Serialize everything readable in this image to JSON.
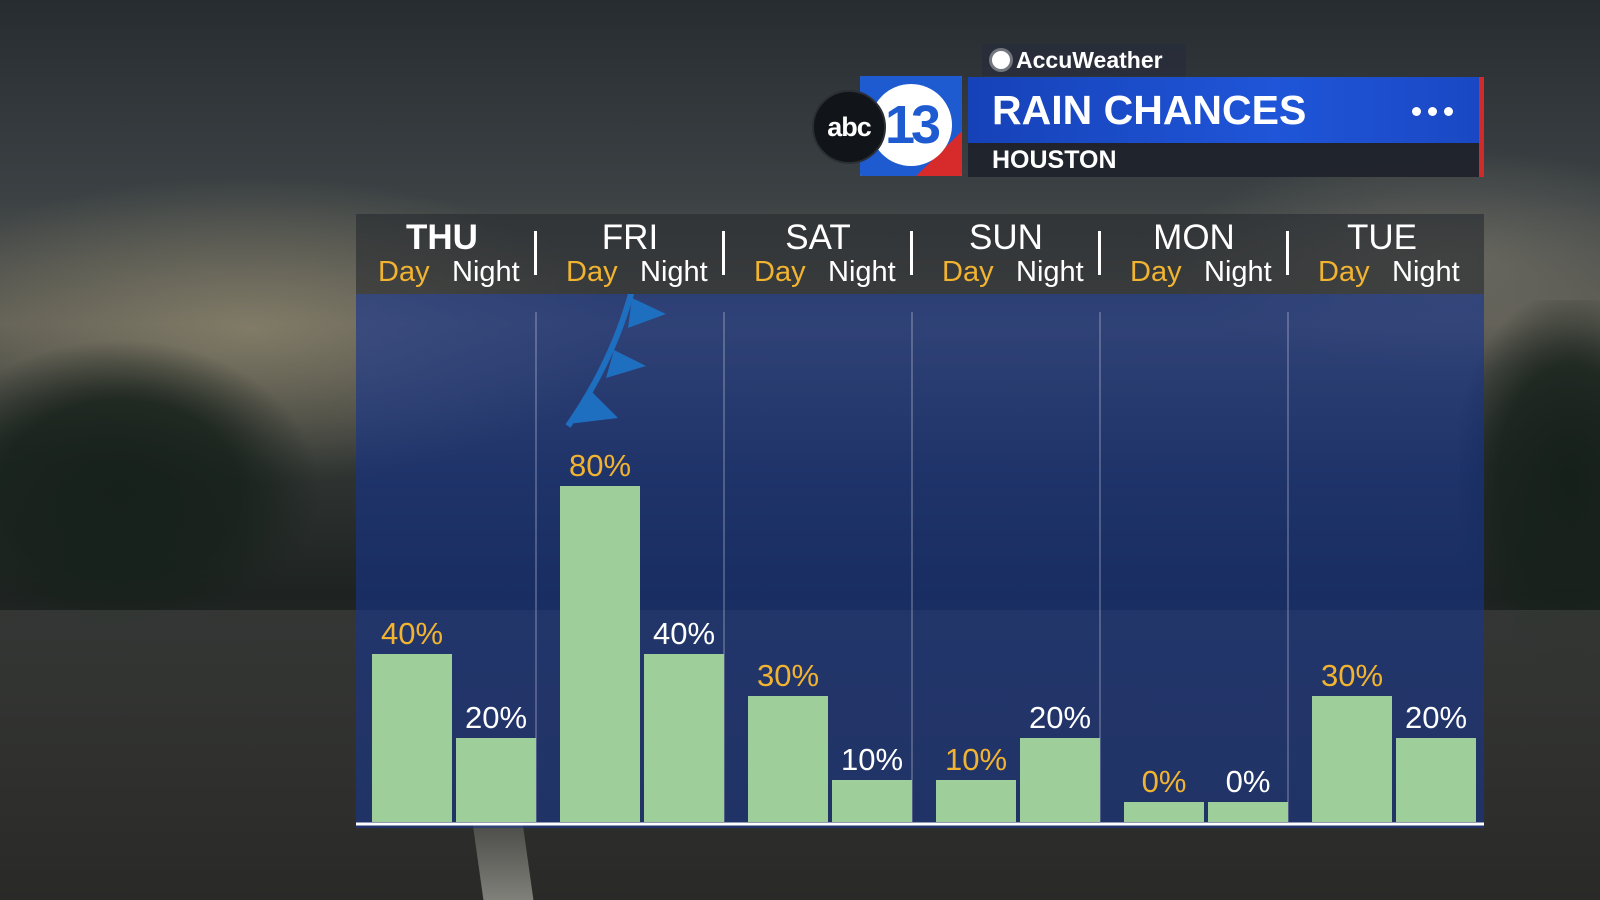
{
  "brand": {
    "sponsor": "AccuWeather",
    "network_logo_text": "abc",
    "channel_number": "13",
    "title": "RAIN CHANCES",
    "location": "HOUSTON"
  },
  "colors": {
    "title_bar": "#1f55d8",
    "accent_red": "#cf2b2b",
    "bar_fill": "#9ecf9b",
    "day_label": "#f2b430",
    "night_label": "#ffffff",
    "front_marker": "#1e6fc0"
  },
  "days": [
    {
      "name": "THU",
      "day": "Day",
      "night": "Night"
    },
    {
      "name": "FRI",
      "day": "Day",
      "night": "Night"
    },
    {
      "name": "SAT",
      "day": "Day",
      "night": "Night"
    },
    {
      "name": "SUN",
      "day": "Day",
      "night": "Night"
    },
    {
      "name": "MON",
      "day": "Day",
      "night": "Night"
    },
    {
      "name": "TUE",
      "day": "Day",
      "night": "Night"
    }
  ],
  "chart_data": {
    "type": "bar",
    "categories": [
      "THU",
      "FRI",
      "SAT",
      "SUN",
      "MON",
      "TUE"
    ],
    "series": [
      {
        "name": "Day",
        "values": [
          40,
          80,
          30,
          10,
          0,
          30
        ],
        "labels": [
          "40%",
          "80%",
          "30%",
          "10%",
          "0%",
          "30%"
        ]
      },
      {
        "name": "Night",
        "values": [
          20,
          40,
          10,
          20,
          0,
          20
        ],
        "labels": [
          "20%",
          "40%",
          "10%",
          "20%",
          "0%",
          "20%"
        ]
      }
    ],
    "ylim": [
      0,
      100
    ],
    "unit": "%",
    "grid": false,
    "annotations": [
      "cold front symbol near FRI Day"
    ]
  }
}
